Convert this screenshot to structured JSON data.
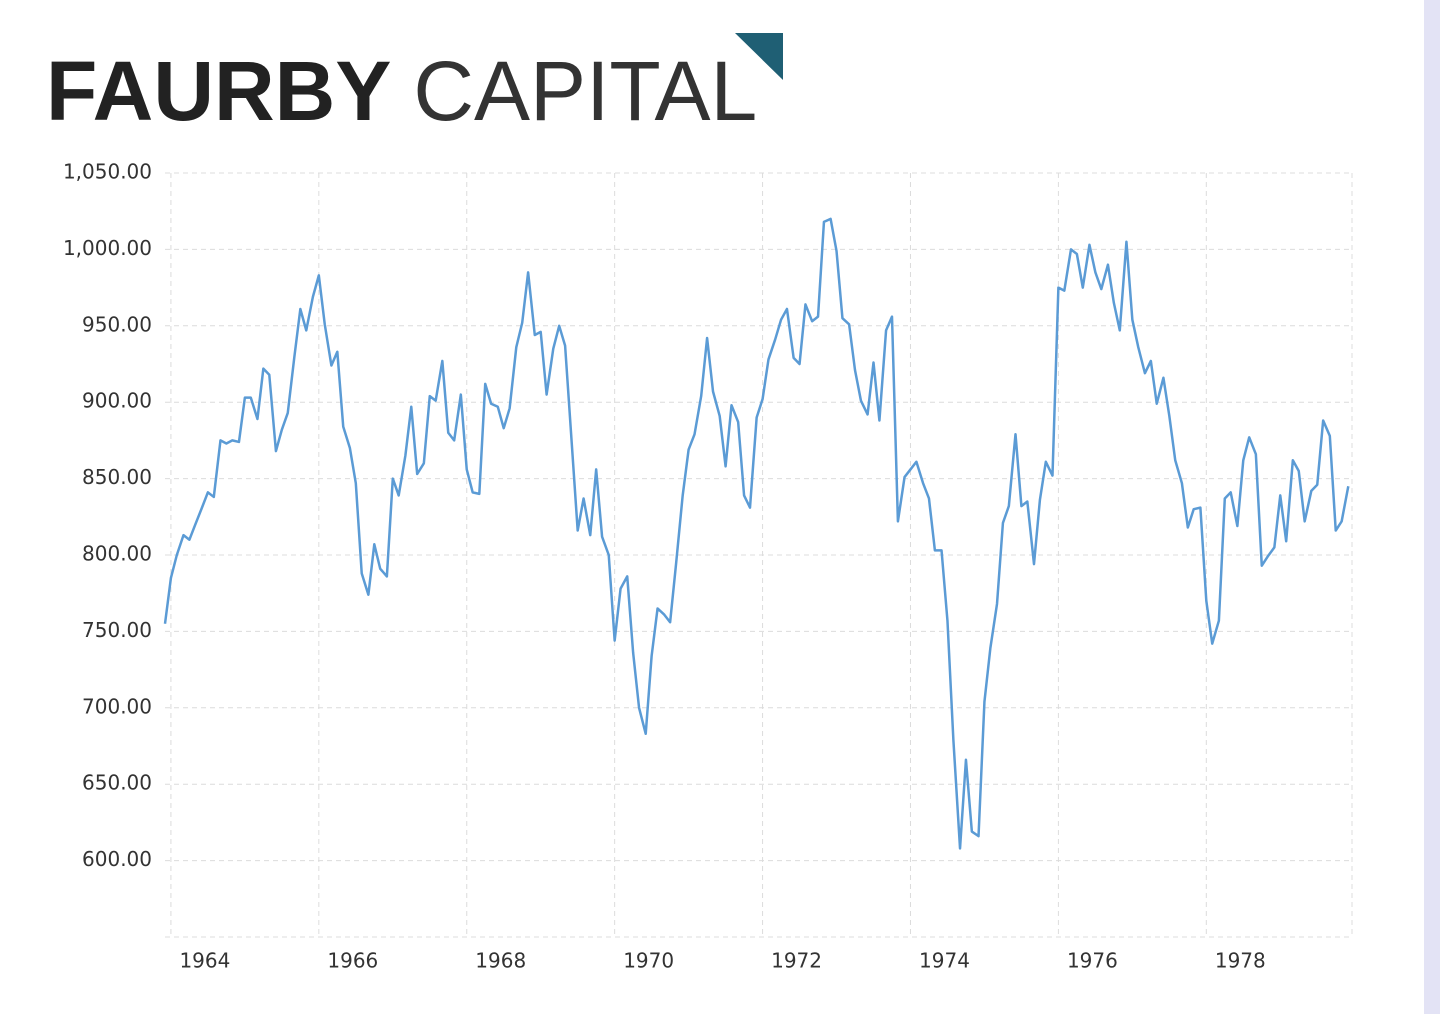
{
  "logo": {
    "bold": "FAURBY",
    "light": "CAPITAL"
  },
  "chart_data": {
    "type": "line",
    "color": "#5b9bd5",
    "grid": true,
    "xlim": [
      1963.92,
      1979.97
    ],
    "ylim": [
      550,
      1050
    ],
    "xticks": [
      1964,
      1966,
      1968,
      1970,
      1972,
      1974,
      1976,
      1978
    ],
    "yticks": [
      {
        "value": 600,
        "label": "600.00"
      },
      {
        "value": 650,
        "label": "650.00"
      },
      {
        "value": 700,
        "label": "700.00"
      },
      {
        "value": 750,
        "label": "750.00"
      },
      {
        "value": 800,
        "label": "800.00"
      },
      {
        "value": 850,
        "label": "850.00"
      },
      {
        "value": 900,
        "label": "900.00"
      },
      {
        "value": 950,
        "label": "950.00"
      },
      {
        "value": 1000,
        "label": "1,000.00"
      },
      {
        "value": 1050,
        "label": "1,050.00"
      }
    ],
    "x": [
      1963.92,
      1964.0,
      1964.08,
      1964.17,
      1964.25,
      1964.33,
      1964.42,
      1964.5,
      1964.58,
      1964.67,
      1964.75,
      1964.83,
      1964.92,
      1965.0,
      1965.08,
      1965.17,
      1965.25,
      1965.33,
      1965.42,
      1965.5,
      1965.58,
      1965.67,
      1965.75,
      1965.83,
      1965.92,
      1966.0,
      1966.08,
      1966.17,
      1966.25,
      1966.33,
      1966.42,
      1966.5,
      1966.58,
      1966.67,
      1966.75,
      1966.83,
      1966.92,
      1967.0,
      1967.08,
      1967.17,
      1967.25,
      1967.33,
      1967.42,
      1967.5,
      1967.58,
      1967.67,
      1967.75,
      1967.83,
      1967.92,
      1968.0,
      1968.08,
      1968.17,
      1968.25,
      1968.33,
      1968.42,
      1968.5,
      1968.58,
      1968.67,
      1968.75,
      1968.83,
      1968.92,
      1969.0,
      1969.08,
      1969.17,
      1969.25,
      1969.33,
      1969.42,
      1969.5,
      1969.58,
      1969.67,
      1969.75,
      1969.83,
      1969.92,
      1970.0,
      1970.08,
      1970.17,
      1970.25,
      1970.33,
      1970.42,
      1970.5,
      1970.58,
      1970.67,
      1970.75,
      1970.83,
      1970.92,
      1971.0,
      1971.08,
      1971.17,
      1971.25,
      1971.33,
      1971.42,
      1971.5,
      1971.58,
      1971.67,
      1971.75,
      1971.83,
      1971.92,
      1972.0,
      1972.08,
      1972.17,
      1972.25,
      1972.33,
      1972.42,
      1972.5,
      1972.58,
      1972.67,
      1972.75,
      1972.83,
      1972.92,
      1973.0,
      1973.08,
      1973.17,
      1973.25,
      1973.33,
      1973.42,
      1973.5,
      1973.58,
      1973.67,
      1973.75,
      1973.83,
      1973.92,
      1974.0,
      1974.08,
      1974.17,
      1974.25,
      1974.33,
      1974.42,
      1974.5,
      1974.58,
      1974.67,
      1974.75,
      1974.83,
      1974.92,
      1975.0,
      1975.08,
      1975.17,
      1975.25,
      1975.33,
      1975.42,
      1975.5,
      1975.58,
      1975.67,
      1975.75,
      1975.83,
      1975.92,
      1976.0,
      1976.08,
      1976.17,
      1976.25,
      1976.33,
      1976.42,
      1976.5,
      1976.58,
      1976.67,
      1976.75,
      1976.83,
      1976.92,
      1977.0,
      1977.08,
      1977.17,
      1977.25,
      1977.33,
      1977.42,
      1977.5,
      1977.58,
      1977.67,
      1977.75,
      1977.83,
      1977.92,
      1978.0,
      1978.08,
      1978.17,
      1978.25,
      1978.33,
      1978.42,
      1978.5,
      1978.58,
      1978.67,
      1978.75,
      1978.83,
      1978.92,
      1979.0,
      1979.08,
      1979.17,
      1979.25,
      1979.33,
      1979.42,
      1979.5,
      1979.58,
      1979.67,
      1979.75,
      1979.83,
      1979.92
    ],
    "values": [
      755,
      785,
      800,
      813,
      810,
      820,
      831,
      841,
      838,
      875,
      873,
      875,
      874,
      903,
      903,
      889,
      922,
      918,
      868,
      882,
      893,
      930,
      961,
      947,
      969,
      983,
      951,
      924,
      933,
      884,
      870,
      847,
      788,
      774,
      807,
      791,
      786,
      850,
      839,
      865,
      897,
      853,
      860,
      904,
      901,
      927,
      880,
      875,
      905,
      856,
      841,
      840,
      912,
      899,
      897,
      883,
      896,
      936,
      952,
      985,
      944,
      946,
      905,
      935,
      950,
      937,
      873,
      816,
      837,
      813,
      856,
      812,
      800,
      744,
      778,
      786,
      736,
      700,
      683,
      734,
      765,
      761,
      756,
      794,
      839,
      869,
      879,
      904,
      942,
      907,
      891,
      858,
      898,
      887,
      839,
      831,
      890,
      902,
      928,
      941,
      954,
      961,
      929,
      925,
      964,
      953,
      956,
      1018,
      1020,
      999,
      955,
      951,
      921,
      901,
      892,
      926,
      888,
      947,
      956,
      822,
      851,
      856,
      861,
      847,
      837,
      803,
      803,
      757,
      679,
      608,
      666,
      619,
      616,
      704,
      739,
      768,
      821,
      832,
      879,
      832,
      835,
      794,
      836,
      861,
      852,
      975,
      973,
      1000,
      997,
      975,
      1003,
      985,
      974,
      990,
      965,
      947,
      1005,
      954,
      936,
      919,
      927,
      899,
      916,
      891,
      862,
      847,
      818,
      830,
      831,
      770,
      742,
      757,
      837,
      841,
      819,
      862,
      877,
      866,
      793,
      799,
      805,
      839,
      809,
      862,
      855,
      822,
      842,
      846,
      888,
      878,
      816,
      822,
      845
    ]
  }
}
